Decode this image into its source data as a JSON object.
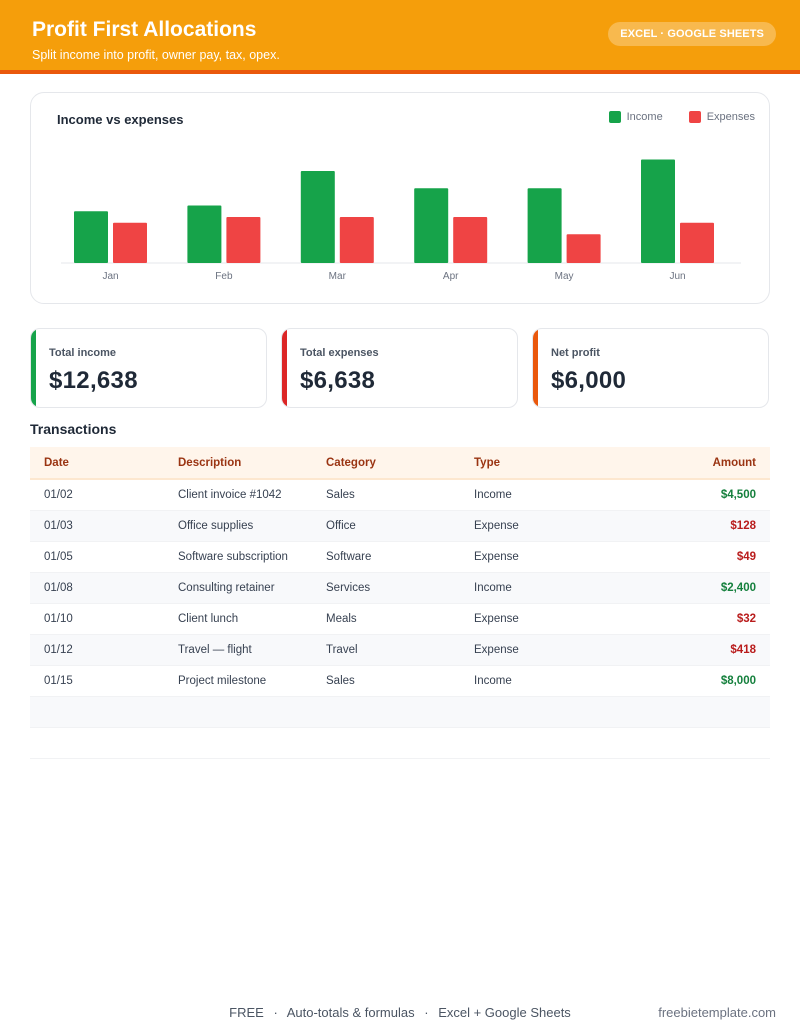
{
  "header": {
    "title": "Profit First Allocations",
    "subtitle": "Split income into profit, owner pay, tax, opex.",
    "badge": "EXCEL · GOOGLE SHEETS"
  },
  "colors": {
    "income": "#16a34a",
    "expenses": "#ef4444",
    "net": "#ea580c",
    "header": "#f59e0b"
  },
  "chart_data": {
    "type": "bar",
    "title": "Income vs expenses",
    "legend_position": "top-right",
    "grid": false,
    "categories": [
      "Jan",
      "Feb",
      "Mar",
      "Apr",
      "May",
      "Jun"
    ],
    "series": [
      {
        "name": "Income",
        "values": [
          4500,
          5000,
          8000,
          6500,
          6500,
          9000
        ]
      },
      {
        "name": "Expenses",
        "values": [
          3500,
          4000,
          4000,
          4000,
          2500,
          3500
        ]
      }
    ],
    "ylim": [
      0,
      10000
    ]
  },
  "kpis": [
    {
      "label": "Total income",
      "value": "$12,638"
    },
    {
      "label": "Total expenses",
      "value": "$6,638"
    },
    {
      "label": "Net profit",
      "value": "$6,000"
    }
  ],
  "transactions": {
    "title": "Transactions",
    "headers": {
      "date": "Date",
      "description": "Description",
      "category": "Category",
      "type": "Type",
      "amount": "Amount"
    },
    "rows": [
      {
        "date": "01/02",
        "description": "Client invoice #1042",
        "category": "Sales",
        "type": "Income",
        "amount": "$4,500"
      },
      {
        "date": "01/03",
        "description": "Office supplies",
        "category": "Office",
        "type": "Expense",
        "amount": "$128"
      },
      {
        "date": "01/05",
        "description": "Software subscription",
        "category": "Software",
        "type": "Expense",
        "amount": "$49"
      },
      {
        "date": "01/08",
        "description": "Consulting retainer",
        "category": "Services",
        "type": "Income",
        "amount": "$2,400"
      },
      {
        "date": "01/10",
        "description": "Client lunch",
        "category": "Meals",
        "type": "Expense",
        "amount": "$32"
      },
      {
        "date": "01/12",
        "description": "Travel — flight",
        "category": "Travel",
        "type": "Expense",
        "amount": "$418"
      },
      {
        "date": "01/15",
        "description": "Project milestone",
        "category": "Sales",
        "type": "Income",
        "amount": "$8,000"
      }
    ]
  },
  "footer": {
    "items": [
      "FREE",
      "Auto-totals & formulas",
      "Excel + Google Sheets"
    ],
    "separator": "·",
    "site": "freebietemplate.com"
  }
}
